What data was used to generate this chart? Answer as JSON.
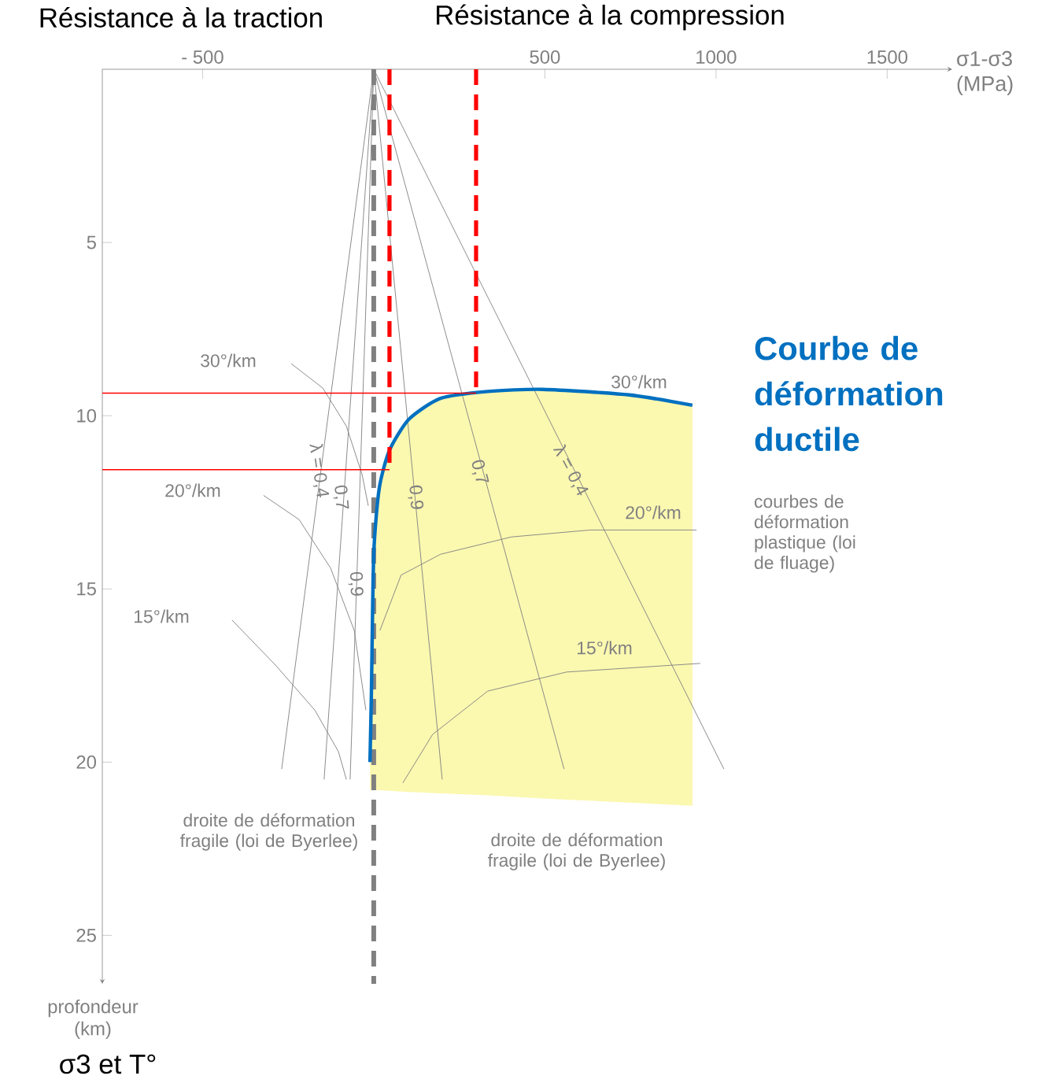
{
  "chart_data": {
    "type": "line",
    "xlabel": "σ1-σ3 (MPa)",
    "ylabel": "profondeur (km)",
    "xlim": [
      -793,
      1690
    ],
    "ylim": [
      26.4,
      0
    ],
    "xticks": [
      {
        "value": -500,
        "label": "- 500"
      },
      500,
      1000,
      1500
    ],
    "yticks": [
      5,
      10,
      15,
      20,
      25
    ],
    "series": [
      {
        "color": "#808080",
        "x": [
          0,
          1023
        ],
        "values": [
          0,
          20.2
        ]
      },
      {
        "color": "#808080",
        "x": [
          0,
          556
        ],
        "values": [
          0,
          20.2
        ]
      },
      {
        "color": "#808080",
        "x": [
          0,
          200
        ],
        "values": [
          0,
          20.5
        ]
      },
      {
        "color": "#808080",
        "x": [
          0,
          -269
        ],
        "values": [
          0,
          20.2
        ]
      },
      {
        "color": "#808080",
        "x": [
          0,
          -145
        ],
        "values": [
          0,
          20.5
        ]
      },
      {
        "color": "#808080",
        "x": [
          0,
          -69
        ],
        "values": [
          0,
          20.5
        ]
      },
      {
        "color": "#808080",
        "x": [
          18,
          80,
          195,
          402,
          632,
          943
        ],
        "values": [
          16.2,
          14.6,
          14.0,
          13.5,
          13.3,
          13.3
        ]
      },
      {
        "color": "#808080",
        "x": [
          85,
          172,
          333,
          563,
          954
        ],
        "values": [
          20.6,
          19.2,
          17.95,
          17.4,
          17.15
        ]
      },
      {
        "color": "#808080",
        "x": [
          -241,
          -149,
          -80,
          -34,
          -16
        ],
        "values": [
          8.5,
          9.2,
          10.3,
          11.7,
          12.6
        ]
      },
      {
        "color": "#808080",
        "x": [
          -322,
          -218,
          -126,
          -57,
          -23
        ],
        "values": [
          12.3,
          13.0,
          14.4,
          16.2,
          18.5
        ]
      },
      {
        "color": "#808080",
        "x": [
          -414,
          -287,
          -172,
          -103,
          -80
        ],
        "values": [
          15.9,
          17.2,
          18.5,
          19.7,
          20.5
        ]
      },
      {
        "color": "#0070c0",
        "x": [
          -11,
          -7,
          0,
          16,
          46,
          103,
          195,
          333,
          494,
          747,
          931
        ],
        "values": [
          20.0,
          18.1,
          14.0,
          12.1,
          11.0,
          10.1,
          9.5,
          9.3,
          9.24,
          9.4,
          9.7
        ],
        "lower": [
          20.0,
          18.1,
          14.0,
          12.1,
          11.0,
          10.1,
          9.5,
          9.3,
          9.24,
          9.4,
          9.7
        ],
        "upper": [
          20.8,
          20.8,
          20.81,
          20.81,
          20.83,
          20.86,
          20.9,
          20.96,
          21.05,
          21.17,
          21.26
        ]
      },
      {
        "color": "#ff0000",
        "line_style": "dashed",
        "x": [
          46,
          46
        ],
        "values": [
          0,
          11.56
        ]
      },
      {
        "color": "#ff0000",
        "line_style": "dashed",
        "x": [
          299,
          299
        ],
        "values": [
          0,
          9.35
        ]
      },
      {
        "color": "#ff0000",
        "x": [
          -793,
          46
        ],
        "values": [
          11.56,
          11.56
        ]
      },
      {
        "color": "#ff0000",
        "x": [
          -793,
          299
        ],
        "values": [
          9.35,
          9.35
        ]
      }
    ],
    "ref_lines": [
      {
        "axis": "x",
        "value": 0,
        "color": "#808080",
        "line_style": "dashed"
      }
    ],
    "annotations": [
      "Résistance à la traction",
      "Résistance à la compression",
      "Courbe de déformation ductile",
      "30°/km",
      "20°/km",
      "15°/km",
      "30°/km",
      "20°/km",
      "15°/km",
      "λ = 0,4",
      "0,7",
      "0,9",
      "0,9",
      "0,7",
      "λ = 0,4",
      "droite de déformation fragile (loi de Byerlee)",
      "droite de déformation fragile (loi de Byerlee)",
      "courbes de déformation plastique (loi de fluage)",
      "σ3 et T°"
    ]
  }
}
